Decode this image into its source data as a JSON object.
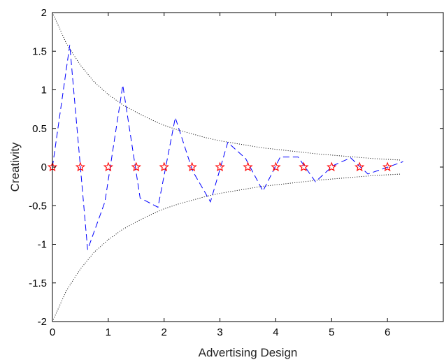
{
  "chart_data": {
    "type": "line",
    "xlabel": "Advertising Design",
    "ylabel": "Creativity",
    "xlim": [
      0,
      7
    ],
    "ylim": [
      -2,
      2
    ],
    "x_ticks": [
      0,
      1,
      2,
      3,
      4,
      5,
      6
    ],
    "y_ticks": [
      -2,
      -1.5,
      -1,
      -0.5,
      0,
      0.5,
      1,
      1.5,
      2
    ],
    "x_tick_labels": [
      "0",
      "1",
      "2",
      "3",
      "4",
      "5",
      "6"
    ],
    "y_tick_labels": [
      "-2",
      "-1.5",
      "-1",
      "-0.5",
      "0",
      "0.5",
      "1",
      "1.5",
      "2"
    ],
    "grid": false,
    "box": true,
    "series": [
      {
        "style": "dotted",
        "color": "#000000",
        "x": [
          0,
          0.25,
          0.5,
          0.75,
          1,
          1.25,
          1.5,
          1.75,
          2,
          2.25,
          2.5,
          2.75,
          3,
          3.25,
          3.5,
          3.75,
          4,
          4.25,
          4.5,
          4.75,
          5,
          5.25,
          5.5,
          5.75,
          6,
          6.25
        ],
        "y": [
          2.0,
          1.6,
          1.32,
          1.1,
          0.94,
          0.81,
          0.71,
          0.62,
          0.54,
          0.48,
          0.43,
          0.38,
          0.34,
          0.31,
          0.28,
          0.25,
          0.23,
          0.21,
          0.19,
          0.17,
          0.155,
          0.14,
          0.125,
          0.11,
          0.1,
          0.09
        ]
      },
      {
        "style": "dotted",
        "color": "#000000",
        "x": [
          0,
          0.25,
          0.5,
          0.75,
          1,
          1.25,
          1.5,
          1.75,
          2,
          2.25,
          2.5,
          2.75,
          3,
          3.25,
          3.5,
          3.75,
          4,
          4.25,
          4.5,
          4.75,
          5,
          5.25,
          5.5,
          5.75,
          6,
          6.25
        ],
        "y": [
          -2.0,
          -1.6,
          -1.32,
          -1.1,
          -0.94,
          -0.81,
          -0.71,
          -0.62,
          -0.54,
          -0.48,
          -0.43,
          -0.38,
          -0.34,
          -0.31,
          -0.28,
          -0.25,
          -0.23,
          -0.21,
          -0.19,
          -0.17,
          -0.155,
          -0.14,
          -0.125,
          -0.11,
          -0.1,
          -0.09
        ]
      },
      {
        "style": "dashed",
        "color": "#0000ff",
        "x": [
          0,
          0.31,
          0.63,
          0.94,
          1.26,
          1.57,
          1.89,
          2.2,
          2.51,
          2.83,
          3.14,
          3.46,
          3.77,
          4.08,
          4.4,
          4.71,
          5.03,
          5.34,
          5.65,
          5.97,
          6.28
        ],
        "y": [
          0,
          1.58,
          -1.07,
          -0.45,
          1.06,
          -0.4,
          -0.52,
          0.64,
          -0.05,
          -0.45,
          0.32,
          0.11,
          -0.31,
          0.13,
          0.13,
          -0.19,
          0.02,
          0.12,
          -0.09,
          -0.01,
          0.07
        ]
      },
      {
        "style": "markers",
        "marker": "star",
        "marker_edge_color": "#ff0000",
        "x": [
          0,
          0.5,
          1,
          1.5,
          2,
          2.5,
          3,
          3.5,
          4,
          4.5,
          5,
          5.5,
          6
        ],
        "y": [
          0,
          0,
          0,
          0,
          0,
          0,
          0,
          0,
          0,
          0,
          0,
          0,
          0
        ]
      }
    ]
  }
}
